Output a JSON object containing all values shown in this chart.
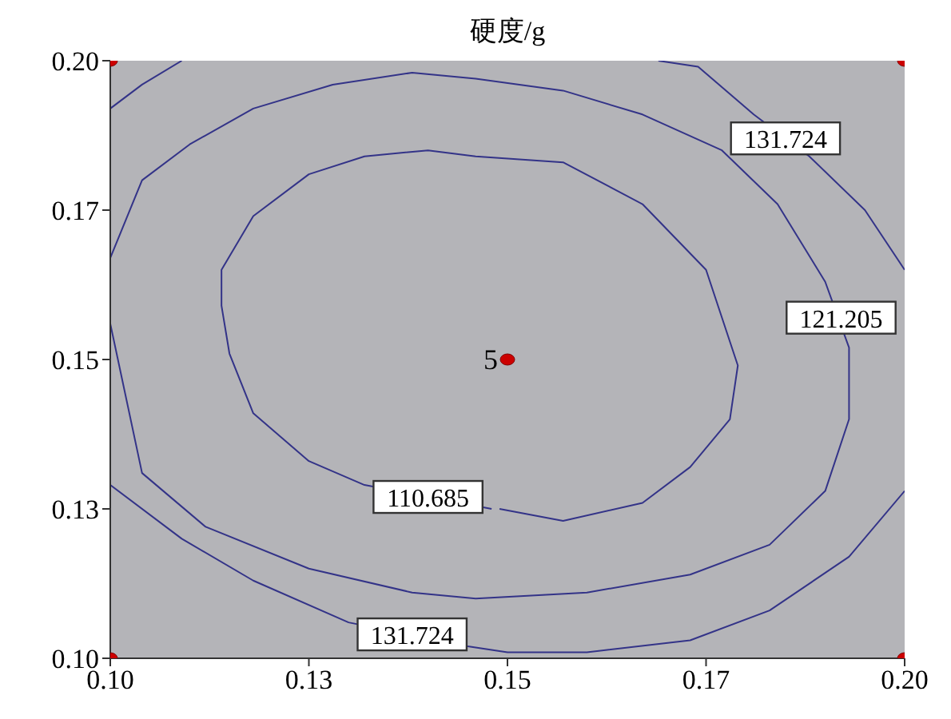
{
  "chart_data": {
    "type": "line",
    "title": "硬度/g",
    "xlim": [
      0.1,
      0.2
    ],
    "ylim": [
      0.1,
      0.2
    ],
    "xticks": [
      {
        "value": 0.1,
        "label": "0.10"
      },
      {
        "value": 0.125,
        "label": "0.13"
      },
      0.15,
      {
        "value": 0.175,
        "label": "0.17"
      },
      {
        "value": 0.2,
        "label": "0.20"
      }
    ],
    "yticks": [
      {
        "value": 0.1,
        "label": "0.10"
      },
      {
        "value": 0.125,
        "label": "0.13"
      },
      0.15,
      {
        "value": 0.175,
        "label": "0.17"
      },
      {
        "value": 0.2,
        "label": "0.20"
      }
    ],
    "grid": false,
    "line_style": "solid",
    "series": [
      {
        "color": "#333388",
        "marker": "none",
        "x": [
          0.1,
          0.104,
          0.109
        ],
        "values": [
          0.192,
          0.196,
          0.2
        ]
      },
      {
        "color": "#333388",
        "marker": "none",
        "x": [
          0.169,
          0.174,
          0.181,
          0.188,
          0.195,
          0.2
        ],
        "values": [
          0.2,
          0.199,
          0.191,
          0.184,
          0.175,
          0.165
        ]
      },
      {
        "color": "#333388",
        "marker": "none",
        "x": [
          0.1,
          0.109,
          0.118,
          0.13,
          0.145,
          0.15,
          0.153,
          0.16,
          0.173,
          0.183,
          0.193,
          0.2
        ],
        "values": [
          0.129,
          0.12,
          0.113,
          0.106,
          0.102,
          0.101,
          0.101,
          0.101,
          0.103,
          0.108,
          0.117,
          0.128
        ]
      },
      {
        "color": "#333388",
        "marker": "none",
        "x": [
          0.1,
          0.104,
          0.11,
          0.118,
          0.128,
          0.138,
          0.146,
          0.157,
          0.167,
          0.177,
          0.184,
          0.19,
          0.193,
          0.193,
          0.19,
          0.183,
          0.173,
          0.16,
          0.146,
          0.138,
          0.125,
          0.112,
          0.104,
          0.1
        ],
        "values": [
          0.167,
          0.18,
          0.186,
          0.192,
          0.196,
          0.198,
          0.197,
          0.195,
          0.191,
          0.185,
          0.176,
          0.163,
          0.152,
          0.14,
          0.128,
          0.119,
          0.114,
          0.111,
          0.11,
          0.111,
          0.115,
          0.122,
          0.131,
          0.156
        ]
      },
      {
        "color": "#333388",
        "marker": "none",
        "x": [
          0.149,
          0.157,
          0.167,
          0.173,
          0.178,
          0.179,
          0.175,
          0.167,
          0.157,
          0.146,
          0.14,
          0.132,
          0.125,
          0.118,
          0.114,
          0.114,
          0.115,
          0.118,
          0.125,
          0.132,
          0.148
        ],
        "values": [
          0.125,
          0.123,
          0.126,
          0.132,
          0.14,
          0.149,
          0.165,
          0.176,
          0.183,
          0.184,
          0.185,
          0.184,
          0.181,
          0.174,
          0.165,
          0.159,
          0.151,
          0.141,
          0.133,
          0.129,
          0.125
        ]
      },
      {
        "type": "scatter",
        "color": "#cc0000",
        "marker": "circle",
        "x": [
          0.1,
          0.1,
          0.2,
          0.2,
          0.15
        ],
        "values": [
          0.1,
          0.2,
          0.1,
          0.2,
          0.15
        ]
      }
    ],
    "annotations": [
      {
        "text": "131.724",
        "x": 0.185,
        "y": 0.187
      },
      {
        "text": "121.205",
        "x": 0.192,
        "y": 0.157
      },
      {
        "text": "110.685",
        "x": 0.14,
        "y": 0.127
      },
      {
        "text": "131.724",
        "x": 0.138,
        "y": 0.104
      },
      {
        "text": "5",
        "x": 0.15,
        "y": 0.15
      }
    ]
  }
}
